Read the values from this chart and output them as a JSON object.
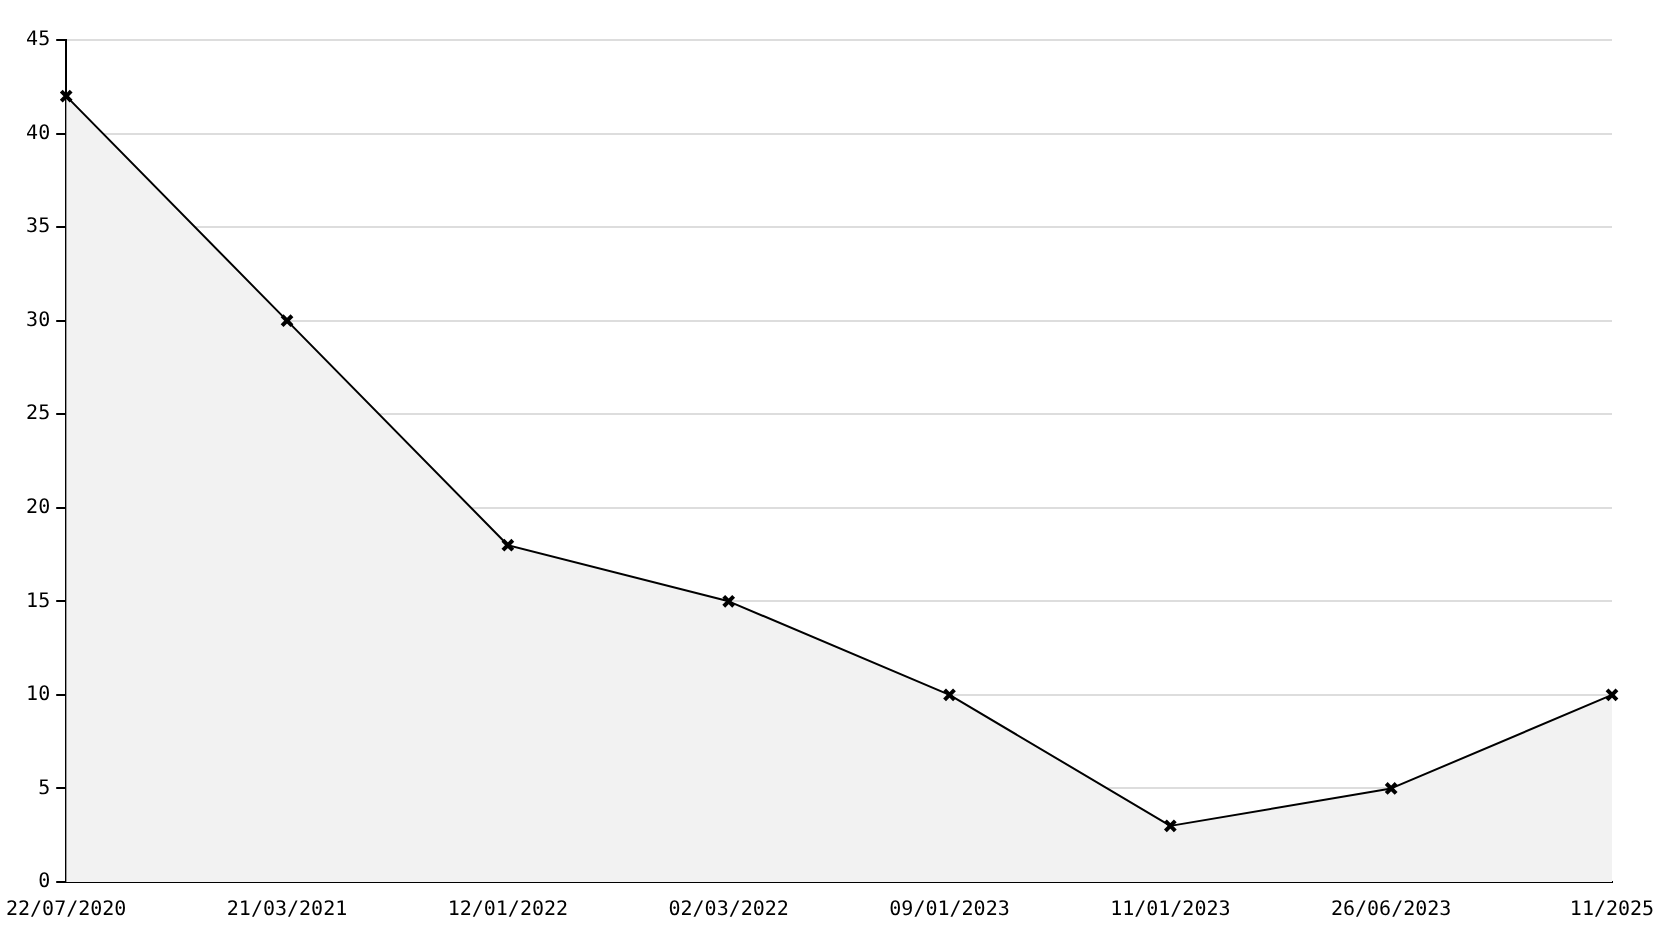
{
  "chart_data": {
    "type": "area",
    "categories": [
      "22/07/2020",
      "21/03/2021",
      "12/01/2022",
      "02/03/2022",
      "09/01/2023",
      "11/01/2023",
      "26/06/2023",
      "11/2025"
    ],
    "series": [
      {
        "color": "#000000",
        "values": [
          42,
          30,
          18,
          15,
          10,
          3,
          5,
          10
        ]
      }
    ],
    "ylim": [
      0,
      45
    ],
    "yticks": [
      0,
      5,
      10,
      15,
      20,
      25,
      30,
      35,
      40,
      45
    ],
    "grid": "y",
    "legend": false,
    "marker": "cross",
    "line_style": "solid"
  }
}
